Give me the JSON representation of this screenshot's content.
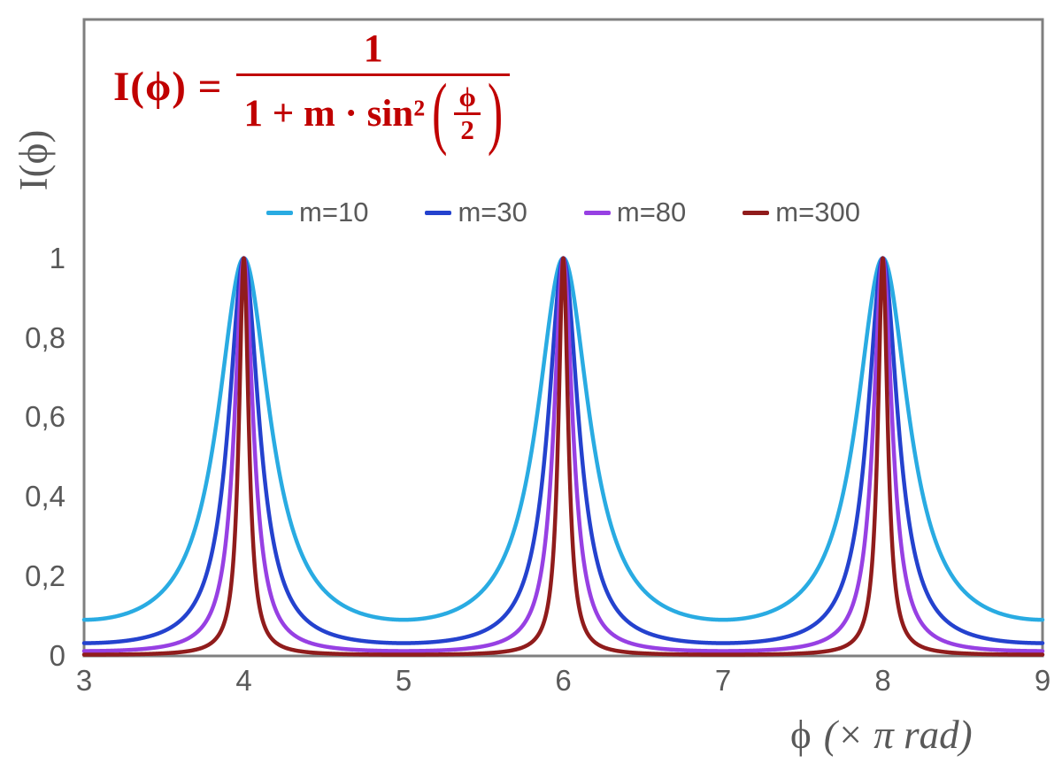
{
  "chart_data": {
    "type": "line",
    "function": "I(phi) = 1 / (1 + m * sin^2(phi/2)), phi plotted in units of pi rad, x from 3 to 9",
    "formula": {
      "lhs": "I(ϕ) =",
      "numerator": "1",
      "denominator_prefix": "1 + m · sin²",
      "paren_open": "(",
      "inner_numerator": "ϕ",
      "inner_denominator": "2",
      "paren_close": ")",
      "color": "#C00000"
    },
    "x_axis": {
      "label_phi": "ϕ",
      "label_units": "(× π rad)",
      "min": 3,
      "max": 9,
      "ticks": [
        {
          "value": 3,
          "label": "3"
        },
        {
          "value": 4,
          "label": "4"
        },
        {
          "value": 5,
          "label": "5"
        },
        {
          "value": 6,
          "label": "6"
        },
        {
          "value": 7,
          "label": "7"
        },
        {
          "value": 8,
          "label": "8"
        },
        {
          "value": 9,
          "label": "9"
        }
      ]
    },
    "y_axis": {
      "label": "I(ϕ)",
      "min": 0,
      "max": 1.6,
      "ticks": [
        {
          "value": 0,
          "label": "0"
        },
        {
          "value": 0.2,
          "label": "0,2"
        },
        {
          "value": 0.4,
          "label": "0,4"
        },
        {
          "value": 0.6,
          "label": "0,6"
        },
        {
          "value": 0.8,
          "label": "0,8"
        },
        {
          "value": 1,
          "label": "1"
        }
      ]
    },
    "series": [
      {
        "name": "m=10",
        "m": 10,
        "color": "#29ABE2"
      },
      {
        "name": "m=30",
        "m": 30,
        "color": "#2442CE"
      },
      {
        "name": "m=80",
        "m": 80,
        "color": "#9740E3"
      },
      {
        "name": "m=300",
        "m": 300,
        "color": "#901C1C"
      }
    ],
    "peaks": {
      "x_positions": [
        4,
        6,
        8
      ],
      "peak_value": 1
    },
    "minima": {
      "x_positions": [
        3,
        5,
        7,
        9
      ],
      "values_by_series": [
        0.0909,
        0.0323,
        0.0123,
        0.0033
      ]
    },
    "sample_step": 0.002,
    "grid": false,
    "legend_position": "top-center"
  },
  "style": {
    "axis_color": "#7F7F7F",
    "label_color": "#595959",
    "background": "#FFFFFF",
    "curve_stroke_width": 4.5,
    "axis_stroke_width": 3
  }
}
